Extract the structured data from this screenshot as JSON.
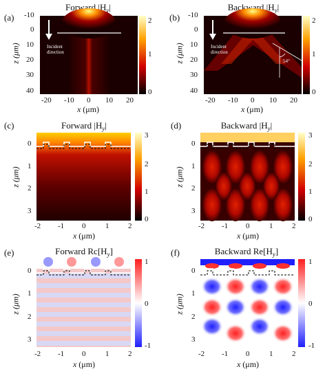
{
  "figure": {
    "panels": [
      {
        "label": "(a)",
        "title": "Forward |H",
        "title_sub": "y",
        "title_end": "|",
        "colorbar_ticks": [
          "2",
          "1",
          "0"
        ],
        "yticks": [
          "-10",
          "0",
          "10",
          "20",
          "30",
          "40"
        ],
        "xticks": [
          "-20",
          "-10",
          "0",
          "10",
          "20"
        ],
        "ylabel": "z (μm)",
        "xlabel_var": "x",
        "xlabel_unit": " (μm)",
        "annotation": "Incident direction"
      },
      {
        "label": "(b)",
        "title": "Backward |H",
        "title_sub": "y",
        "title_end": "|",
        "colorbar_ticks": [
          "2",
          "1",
          "0"
        ],
        "yticks": [
          "-10",
          "0",
          "10",
          "20",
          "30",
          "40"
        ],
        "xticks": [
          "-20",
          "-10",
          "0",
          "10",
          "20"
        ],
        "ylabel": "z (μm)",
        "xlabel_var": "x",
        "xlabel_unit": " (μm)",
        "annotation": "Incident direction",
        "angle_label": "54°"
      },
      {
        "label": "(c)",
        "title": "Forward |H",
        "title_sub": "y",
        "title_end": "|",
        "colorbar_ticks": [
          "3",
          "2",
          "1",
          "0"
        ],
        "yticks": [
          "0",
          "1",
          "2",
          "3"
        ],
        "xticks": [
          "-2",
          "-1",
          "0",
          "1",
          "2"
        ],
        "ylabel": "z (μm)",
        "xlabel_var": "x",
        "xlabel_unit": " (μm)"
      },
      {
        "label": "(d)",
        "title": "Backward |H",
        "title_sub": "y",
        "title_end": "|",
        "colorbar_ticks": [
          "3",
          "2",
          "1",
          "0"
        ],
        "yticks": [
          "0",
          "1",
          "2",
          "3"
        ],
        "xticks": [
          "-2",
          "-1",
          "0",
          "1",
          "2"
        ],
        "ylabel": "z (μm)",
        "xlabel_var": "x",
        "xlabel_unit": " (μm)"
      },
      {
        "label": "(e)",
        "title": "Forward Rc[H",
        "title_sub": "y",
        "title_end": "]",
        "colorbar_ticks": [
          "1",
          "0",
          "-1"
        ],
        "yticks": [
          "0",
          "1",
          "2",
          "3"
        ],
        "xticks": [
          "-2",
          "-1",
          "0",
          "1",
          "2"
        ],
        "ylabel": "z (μm)",
        "xlabel_var": "x",
        "xlabel_unit": " (μm)"
      },
      {
        "label": "(f)",
        "title": "Backward Re[H",
        "title_sub": "y",
        "title_end": "]",
        "colorbar_ticks": [
          "1",
          "0",
          "-1"
        ],
        "yticks": [
          "0",
          "1",
          "2",
          "3"
        ],
        "xticks": [
          "-2",
          "-1",
          "0",
          "1",
          "2"
        ],
        "ylabel": "z (μm)",
        "xlabel_var": "x",
        "xlabel_unit": " (μm)"
      }
    ]
  },
  "colors": {
    "hot_dark": "#1a0000",
    "hot_red": "#c81400",
    "hot_orange": "#ff8c00",
    "hot_yellow": "#ffff80",
    "bwr_blue": "#1f1fff",
    "bwr_red": "#ff1f1f",
    "white": "#ffffff"
  }
}
